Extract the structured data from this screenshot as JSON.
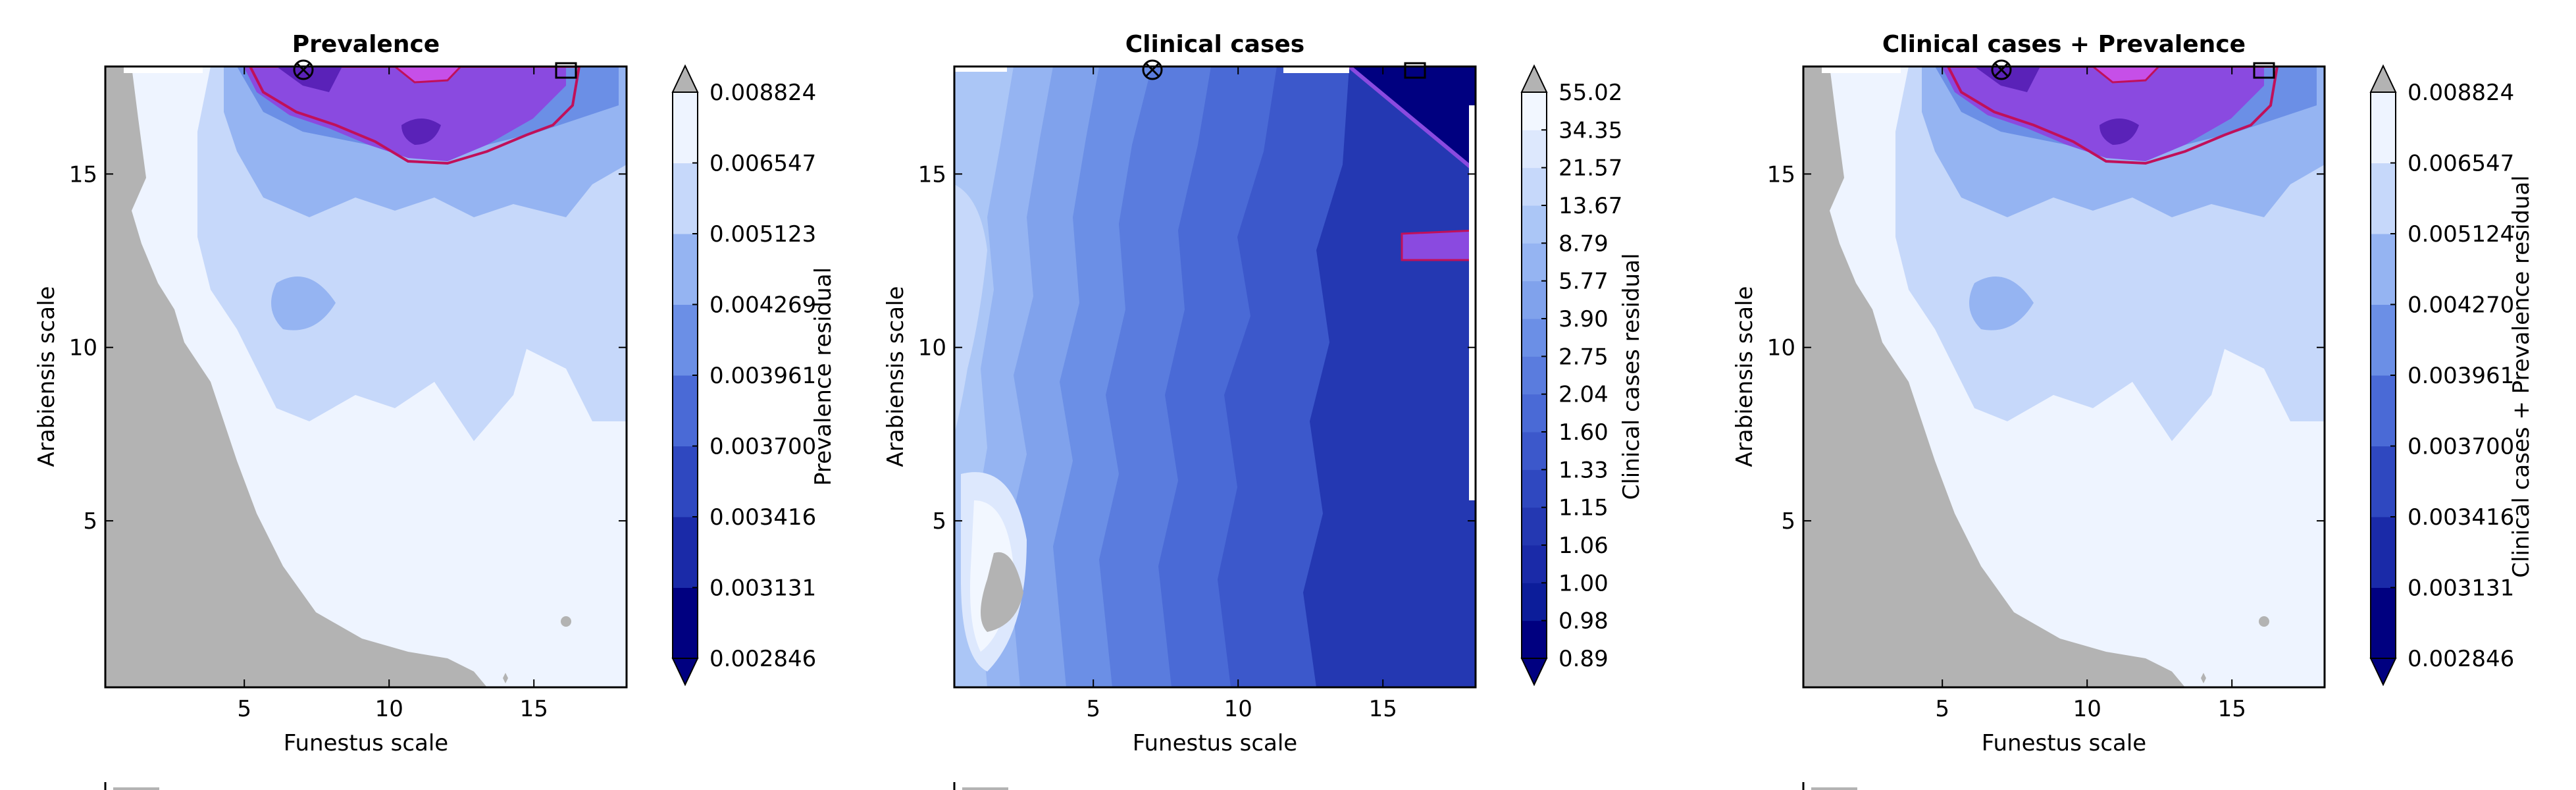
{
  "chart_data": [
    {
      "type": "contour",
      "title": "Prevalence",
      "xlabel": "Funestus scale",
      "ylabel": "Arabiensis scale",
      "xlim": [
        0.2,
        18.2
      ],
      "ylim": [
        0.2,
        18.1
      ],
      "xticks": [
        "5",
        "10",
        "15"
      ],
      "yticks": [
        "5",
        "10",
        "15"
      ],
      "colorbar_label": "Prevalence residual",
      "colorbar_ticks": [
        "0.002846",
        "0.003131",
        "0.003416",
        "0.003700",
        "0.003961",
        "0.004269",
        "0.005123",
        "0.006547",
        "0.008824"
      ],
      "colorbar_colors": [
        "#000080",
        "#1a2aa8",
        "#2f48c0",
        "#4a6ad6",
        "#6b8fe6",
        "#95b4f2",
        "#c6d8fa",
        "#eef4ff"
      ],
      "minimum_marker": {
        "x": 7.0,
        "y": 17.9
      },
      "box_marker": {
        "x": 16.0,
        "y": 17.9
      }
    },
    {
      "type": "contour",
      "title": "Clinical cases",
      "xlabel": "Funestus scale",
      "ylabel": "Arabiensis scale",
      "xlim": [
        0.2,
        18.2
      ],
      "ylim": [
        0.2,
        18.1
      ],
      "xticks": [
        "5",
        "10",
        "15"
      ],
      "yticks": [
        "5",
        "10",
        "15"
      ],
      "colorbar_label": "Clinical cases residual",
      "colorbar_ticks": [
        "0.89",
        "0.98",
        "1.00",
        "1.06",
        "1.15",
        "1.33",
        "1.60",
        "2.04",
        "2.75",
        "3.90",
        "5.77",
        "8.79",
        "13.67",
        "21.57",
        "34.35",
        "55.02"
      ],
      "colorbar_colors": [
        "#000080",
        "#0c1d9a",
        "#1a2aa8",
        "#2438b2",
        "#2f48c0",
        "#3c58cb",
        "#4a6ad6",
        "#5a7cde",
        "#6b8fe6",
        "#80a2ec",
        "#95b4f2",
        "#abc6f6",
        "#c6d8fa",
        "#dde8fd",
        "#f2f7ff"
      ],
      "minimum_marker": {
        "x": 7.0,
        "y": 17.9
      },
      "box_marker": {
        "x": 16.0,
        "y": 17.9
      }
    },
    {
      "type": "contour",
      "title": "Clinical cases + Prevalence",
      "xlabel": "Funestus scale",
      "ylabel": "Arabiensis scale",
      "xlim": [
        0.2,
        18.2
      ],
      "ylim": [
        0.2,
        18.1
      ],
      "xticks": [
        "5",
        "10",
        "15"
      ],
      "yticks": [
        "5",
        "10",
        "15"
      ],
      "colorbar_label": "Clinical cases + Prevalence residual",
      "colorbar_ticks": [
        "0.002846",
        "0.003131",
        "0.003416",
        "0.003700",
        "0.003961",
        "0.004270",
        "0.005124",
        "0.006547",
        "0.008824"
      ],
      "colorbar_colors": [
        "#000080",
        "#1a2aa8",
        "#2f48c0",
        "#4a6ad6",
        "#6b8fe6",
        "#95b4f2",
        "#c6d8fa",
        "#eef4ff"
      ],
      "minimum_marker": {
        "x": 7.0,
        "y": 17.9
      },
      "box_marker": {
        "x": 16.0,
        "y": 17.9
      }
    }
  ],
  "colors": {
    "masked_region": "#b3b3b3",
    "purple_region": "#8a4ae0",
    "purple_dark": "#5a22b8",
    "magenta_contour": "#c0105a",
    "axis": "#000000"
  }
}
